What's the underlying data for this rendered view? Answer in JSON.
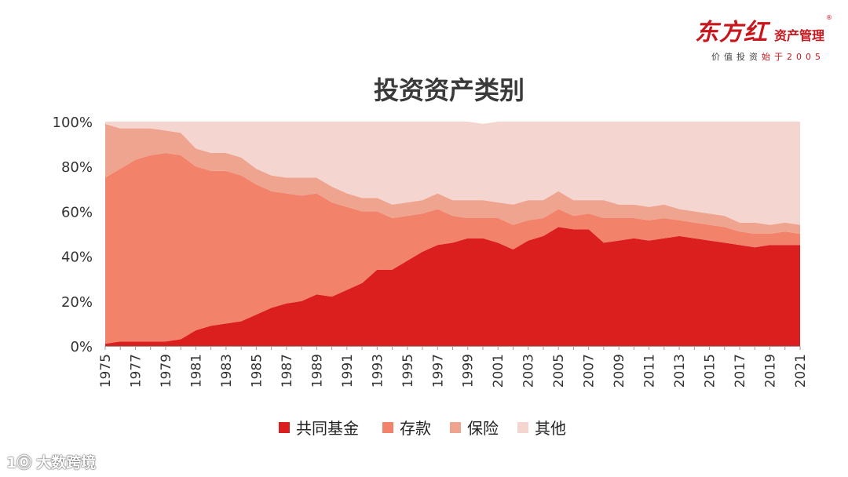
{
  "brand": {
    "logo": "东方红",
    "name": "资产管理",
    "reg": "®",
    "slogan_a": "价值投资",
    "slogan_b": "始于2005"
  },
  "watermark": {
    "mark": "1Ⓞ",
    "text": "大数跨境"
  },
  "colors": {
    "fund": "#db1f1f",
    "deposit": "#f2826a",
    "insurance": "#efa490",
    "other": "#f5d5d0",
    "axis_text": "#333333"
  },
  "chart_data": {
    "type": "area",
    "stacked": true,
    "title": "投资资产类别",
    "xlabel": "",
    "ylabel": "",
    "ylim": [
      0,
      100
    ],
    "yticks": [
      "0%",
      "20%",
      "40%",
      "60%",
      "80%",
      "100%"
    ],
    "x": [
      1975,
      1976,
      1977,
      1978,
      1979,
      1980,
      1981,
      1982,
      1983,
      1984,
      1985,
      1986,
      1987,
      1988,
      1989,
      1990,
      1991,
      1992,
      1993,
      1994,
      1995,
      1996,
      1997,
      1998,
      1999,
      2000,
      2001,
      2002,
      2003,
      2004,
      2005,
      2006,
      2007,
      2008,
      2009,
      2010,
      2011,
      2012,
      2013,
      2014,
      2015,
      2016,
      2017,
      2018,
      2019,
      2020,
      2021
    ],
    "xtick_labels": [
      "1975",
      "1977",
      "1979",
      "1981",
      "1983",
      "1985",
      "1987",
      "1989",
      "1991",
      "1993",
      "1995",
      "1997",
      "1999",
      "2001",
      "2003",
      "2005",
      "2007",
      "2009",
      "2011",
      "2013",
      "2015",
      "2017",
      "2019",
      "2021"
    ],
    "series": [
      {
        "name": "共同基金",
        "color": "#db1f1f",
        "values": [
          1,
          2,
          2,
          2,
          2,
          3,
          7,
          9,
          10,
          11,
          14,
          17,
          19,
          20,
          23,
          22,
          25,
          28,
          34,
          34,
          38,
          42,
          45,
          46,
          48,
          48,
          46,
          43,
          47,
          49,
          53,
          52,
          52,
          46,
          47,
          48,
          47,
          48,
          49,
          48,
          47,
          46,
          45,
          44,
          45,
          45,
          45
        ]
      },
      {
        "name": "存款",
        "color": "#f2826a",
        "values": [
          74,
          77,
          81,
          83,
          84,
          82,
          73,
          69,
          68,
          65,
          58,
          52,
          49,
          47,
          45,
          42,
          37,
          32,
          26,
          23,
          20,
          17,
          16,
          12,
          9,
          9,
          11,
          11,
          9,
          8,
          8,
          6,
          7,
          11,
          10,
          9,
          9,
          9,
          7,
          7,
          7,
          7,
          6,
          6,
          5,
          6,
          5
        ]
      },
      {
        "name": "保险",
        "color": "#efa490",
        "values": [
          24,
          18,
          14,
          12,
          10,
          10,
          8,
          8,
          8,
          8,
          7,
          7,
          7,
          8,
          7,
          7,
          6,
          6,
          6,
          6,
          6,
          6,
          7,
          7,
          8,
          8,
          7,
          9,
          9,
          8,
          8,
          7,
          6,
          8,
          6,
          6,
          6,
          6,
          5,
          5,
          5,
          5,
          4,
          5,
          4,
          4,
          4
        ]
      },
      {
        "name": "其他",
        "color": "#f5d5d0",
        "values": [
          1,
          3,
          3,
          3,
          4,
          5,
          12,
          14,
          14,
          16,
          21,
          24,
          25,
          25,
          25,
          29,
          32,
          34,
          34,
          37,
          36,
          35,
          32,
          35,
          35,
          34,
          36,
          37,
          35,
          35,
          31,
          35,
          35,
          35,
          37,
          37,
          38,
          37,
          39,
          40,
          41,
          42,
          45,
          45,
          46,
          45,
          46
        ]
      }
    ],
    "legend_position": "bottom-center"
  }
}
